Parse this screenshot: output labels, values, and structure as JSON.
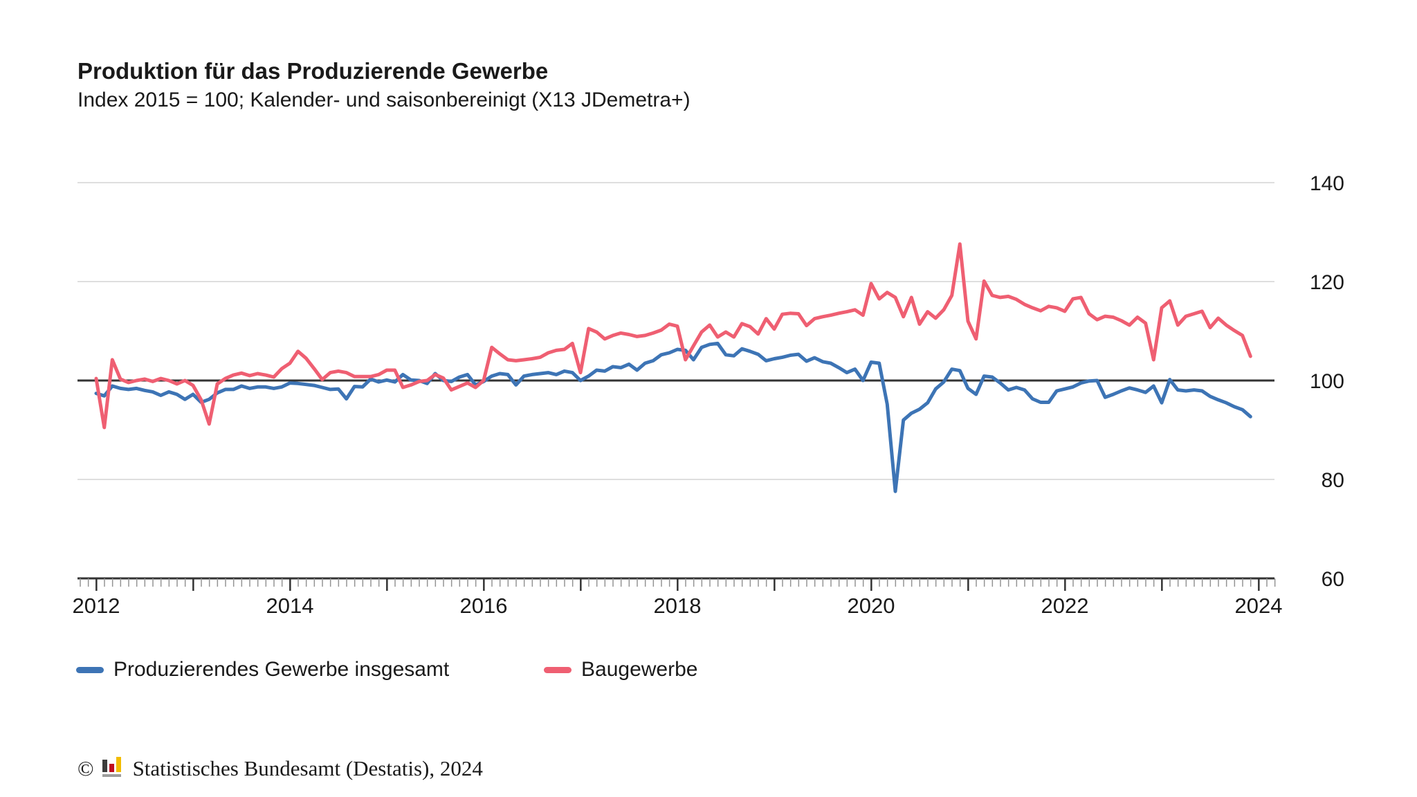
{
  "header": {
    "title": "Produktion für das Produzierende Gewerbe",
    "subtitle": "Index 2015 = 100; Kalender- und saisonbereinigt (X13 JDemetra+)"
  },
  "chart_data": {
    "type": "line",
    "title": "Produktion für das Produzierende Gewerbe",
    "subtitle": "Index 2015 = 100; Kalender- und saisonbereinigt (X13 JDemetra+)",
    "x_start": "2012-01",
    "x_end": "2023-12",
    "frequency": "monthly",
    "x_tick_labels": [
      "2012",
      "2014",
      "2016",
      "2018",
      "2020",
      "2022",
      "2024"
    ],
    "y_ticks": [
      60,
      80,
      100,
      120,
      140
    ],
    "ylim": [
      60,
      140
    ],
    "reference_line": 100,
    "grid": "horizontal",
    "legend_position": "bottom",
    "series": [
      {
        "name": "Produzierendes Gewerbe insgesamt",
        "color": "#3d74b5",
        "values": [
          97.4,
          96.9,
          98.9,
          98.4,
          98.2,
          98.4,
          98.0,
          97.7,
          97.0,
          97.7,
          97.2,
          96.2,
          97.2,
          95.6,
          96.2,
          97.5,
          98.2,
          98.2,
          98.9,
          98.4,
          98.7,
          98.7,
          98.4,
          98.7,
          99.5,
          99.4,
          99.2,
          99.0,
          98.6,
          98.2,
          98.3,
          96.3,
          98.8,
          98.7,
          100.3,
          99.7,
          100.1,
          99.7,
          101.2,
          100.1,
          100.0,
          99.4,
          101.4,
          100.0,
          99.8,
          100.7,
          101.2,
          99.1,
          99.8,
          100.9,
          101.4,
          101.2,
          99.1,
          100.9,
          101.2,
          101.4,
          101.6,
          101.2,
          101.9,
          101.6,
          100.0,
          100.9,
          102.1,
          101.9,
          102.8,
          102.6,
          103.3,
          102.1,
          103.5,
          104.0,
          105.2,
          105.6,
          106.3,
          106.1,
          104.2,
          106.7,
          107.3,
          107.5,
          105.2,
          105.0,
          106.4,
          105.9,
          105.3,
          104.0,
          104.4,
          104.7,
          105.1,
          105.3,
          103.9,
          104.6,
          103.8,
          103.5,
          102.6,
          101.6,
          102.3,
          100.0,
          103.7,
          103.5,
          95.2,
          77.6,
          92.0,
          93.4,
          94.2,
          95.5,
          98.3,
          99.7,
          102.3,
          102.0,
          98.4,
          97.2,
          100.9,
          100.7,
          99.5,
          98.1,
          98.6,
          98.1,
          96.3,
          95.6,
          95.6,
          97.9,
          98.3,
          98.7,
          99.5,
          99.9,
          100.0,
          96.6,
          97.2,
          97.9,
          98.5,
          98.1,
          97.6,
          98.9,
          95.5,
          100.2,
          98.1,
          97.9,
          98.1,
          97.9,
          96.8,
          96.1,
          95.5,
          94.7,
          94.1,
          92.7
        ]
      },
      {
        "name": "Baugewerbe",
        "color": "#ef5f72",
        "values": [
          100.4,
          90.5,
          104.2,
          100.3,
          99.6,
          100.0,
          100.3,
          99.8,
          100.4,
          100.0,
          99.3,
          100.0,
          99.0,
          96.1,
          91.2,
          99.3,
          100.4,
          101.1,
          101.5,
          101.0,
          101.4,
          101.1,
          100.7,
          102.4,
          103.5,
          105.9,
          104.5,
          102.4,
          100.2,
          101.6,
          101.9,
          101.6,
          100.8,
          100.8,
          100.8,
          101.2,
          102.1,
          102.1,
          98.6,
          99.1,
          99.8,
          100.0,
          101.2,
          100.5,
          98.1,
          98.8,
          99.5,
          98.6,
          100.0,
          106.7,
          105.4,
          104.2,
          104.0,
          104.2,
          104.4,
          104.7,
          105.6,
          106.1,
          106.3,
          107.5,
          101.6,
          110.5,
          109.8,
          108.4,
          109.1,
          109.6,
          109.3,
          108.9,
          109.1,
          109.6,
          110.2,
          111.4,
          111.0,
          104.2,
          107.0,
          109.8,
          111.2,
          108.8,
          109.8,
          108.8,
          111.5,
          110.9,
          109.4,
          112.5,
          110.4,
          113.4,
          113.6,
          113.5,
          111.1,
          112.5,
          112.9,
          113.2,
          113.6,
          113.9,
          114.3,
          113.2,
          119.6,
          116.5,
          117.8,
          116.8,
          112.9,
          116.8,
          111.4,
          113.9,
          112.6,
          114.3,
          117.2,
          127.6,
          112.0,
          108.4,
          120.1,
          117.2,
          116.8,
          117.0,
          116.4,
          115.4,
          114.7,
          114.1,
          115.0,
          114.7,
          114.0,
          116.5,
          116.8,
          113.5,
          112.3,
          113.0,
          112.8,
          112.1,
          111.2,
          112.8,
          111.6,
          104.2,
          114.7,
          116.1,
          111.2,
          113.0,
          113.5,
          114.0,
          110.7,
          112.6,
          111.2,
          110.1,
          109.1,
          104.9
        ]
      }
    ]
  },
  "legend": {
    "items": [
      "Produzierendes Gewerbe insgesamt",
      "Baugewerbe"
    ]
  },
  "footer": {
    "copyright_symbol": "©",
    "logo_icon": "destatis-bar-chart-logo",
    "text": "Statistisches Bundesamt (Destatis), 2024"
  },
  "colors": {
    "series_total": "#3d74b5",
    "series_construction": "#ef5f72",
    "grid_light": "#d4d4d4",
    "axis_dark": "#333333",
    "tick_minor": "#949494",
    "text": "#1a1a1a",
    "background": "#ffffff"
  }
}
